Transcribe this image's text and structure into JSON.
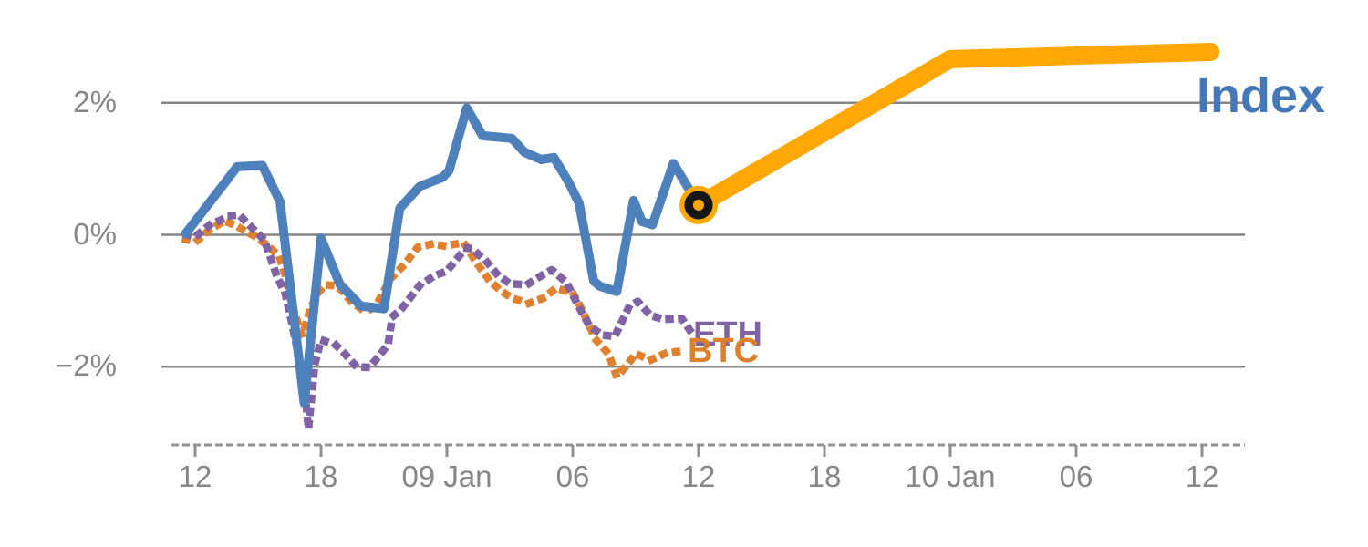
{
  "chart_data": {
    "type": "line",
    "description": "Intraday percent-change chart: Index (solid blue) vs ETH (purple dotted) and BTC (orange dotted), with a thick amber projection of the Index continuing to the right from a ringed marker.",
    "x_axis": {
      "unit": "time, ticks every 6 hours (t = hours after 08 Jan 12:00)",
      "ticks": [
        {
          "hour": 0,
          "label": "12"
        },
        {
          "hour": 6,
          "label": "18"
        },
        {
          "hour": 12,
          "label": "09 Jan"
        },
        {
          "hour": 18,
          "label": "06"
        },
        {
          "hour": 24,
          "label": "12"
        },
        {
          "hour": 30,
          "label": "18"
        },
        {
          "hour": 36,
          "label": "10 Jan"
        },
        {
          "hour": 42,
          "label": "06"
        },
        {
          "hour": 48,
          "label": "12"
        }
      ]
    },
    "y_axis": {
      "unit": "percent change",
      "ticks": [
        {
          "value": 2,
          "label": "2%"
        },
        {
          "value": 0,
          "label": "0%"
        },
        {
          "value": -2,
          "label": "−2%"
        }
      ],
      "implied_range": [
        -3.2,
        3.1
      ]
    },
    "grid": "horizontal gridlines at labeled ticks",
    "legend": "inline series labels",
    "colors": {
      "grid": "#868686",
      "axis": "#909090",
      "index_blue": "#4e80bc",
      "forecast_amber": "#ffa805",
      "eth_purple": "#7f63a5",
      "btc_orange": "#e0812f",
      "marker_ring_black": "#161616"
    },
    "series": [
      {
        "id": "btc",
        "name": "BTC",
        "style": "dotted",
        "color": "#e0812f",
        "width": 8.5,
        "points": [
          [
            -0.45,
            -0.07
          ],
          [
            0.05,
            -0.1
          ],
          [
            0.7,
            0.08
          ],
          [
            1.4,
            0.21
          ],
          [
            2.0,
            0.13
          ],
          [
            2.3,
            0.07
          ],
          [
            2.9,
            -0.03
          ],
          [
            3.4,
            -0.15
          ],
          [
            4.0,
            -0.32
          ],
          [
            4.3,
            -0.62
          ],
          [
            4.6,
            -1.05
          ],
          [
            5.1,
            -1.53
          ],
          [
            5.5,
            -1.12
          ],
          [
            5.8,
            -0.9
          ],
          [
            6.2,
            -0.76
          ],
          [
            6.6,
            -0.77
          ],
          [
            7.0,
            -0.84
          ],
          [
            7.4,
            -1.0
          ],
          [
            7.9,
            -1.12
          ],
          [
            8.3,
            -1.14
          ],
          [
            8.7,
            -1.03
          ],
          [
            9.3,
            -0.67
          ],
          [
            10.0,
            -0.44
          ],
          [
            10.6,
            -0.19
          ],
          [
            11.3,
            -0.14
          ],
          [
            11.9,
            -0.17
          ],
          [
            12.8,
            -0.12
          ],
          [
            13.4,
            -0.42
          ],
          [
            14.0,
            -0.68
          ],
          [
            14.5,
            -0.83
          ],
          [
            15.1,
            -0.96
          ],
          [
            15.9,
            -1.04
          ],
          [
            16.6,
            -0.96
          ],
          [
            17.2,
            -0.81
          ],
          [
            18.0,
            -0.88
          ],
          [
            18.4,
            -1.11
          ],
          [
            19.1,
            -1.59
          ],
          [
            19.7,
            -1.8
          ],
          [
            20.1,
            -2.15
          ],
          [
            20.6,
            -1.97
          ],
          [
            21.0,
            -1.8
          ],
          [
            21.7,
            -1.9
          ],
          [
            22.4,
            -1.8
          ],
          [
            23.2,
            -1.76
          ]
        ]
      },
      {
        "id": "eth",
        "name": "ETH",
        "style": "dotted",
        "color": "#7f63a5",
        "width": 8.5,
        "points": [
          [
            -0.4,
            0.0
          ],
          [
            0.0,
            -0.03
          ],
          [
            0.7,
            0.15
          ],
          [
            1.7,
            0.29
          ],
          [
            2.1,
            0.3
          ],
          [
            2.7,
            0.11
          ],
          [
            3.3,
            -0.08
          ],
          [
            3.9,
            -0.63
          ],
          [
            4.3,
            -0.9
          ],
          [
            4.6,
            -1.32
          ],
          [
            4.9,
            -1.79
          ],
          [
            5.2,
            -2.27
          ],
          [
            5.4,
            -2.94
          ],
          [
            5.7,
            -1.97
          ],
          [
            6.0,
            -1.59
          ],
          [
            6.7,
            -1.67
          ],
          [
            7.1,
            -1.79
          ],
          [
            7.7,
            -2.0
          ],
          [
            8.3,
            -2.01
          ],
          [
            8.7,
            -1.86
          ],
          [
            9.2,
            -1.66
          ],
          [
            9.4,
            -1.24
          ],
          [
            9.8,
            -1.14
          ],
          [
            10.7,
            -0.77
          ],
          [
            11.4,
            -0.62
          ],
          [
            12.0,
            -0.55
          ],
          [
            12.9,
            -0.2
          ],
          [
            13.2,
            -0.21
          ],
          [
            13.9,
            -0.41
          ],
          [
            14.4,
            -0.6
          ],
          [
            15.0,
            -0.74
          ],
          [
            15.8,
            -0.76
          ],
          [
            16.4,
            -0.64
          ],
          [
            17.0,
            -0.53
          ],
          [
            17.7,
            -0.72
          ],
          [
            18.3,
            -1.1
          ],
          [
            18.8,
            -1.38
          ],
          [
            19.4,
            -1.52
          ],
          [
            20.0,
            -1.54
          ],
          [
            20.7,
            -1.08
          ],
          [
            21.1,
            -1.01
          ],
          [
            21.7,
            -1.22
          ],
          [
            22.3,
            -1.28
          ],
          [
            23.2,
            -1.27
          ],
          [
            23.7,
            -1.5
          ]
        ]
      },
      {
        "id": "index",
        "name": "Index",
        "style": "solid",
        "color": "#4e80bc",
        "width": 10,
        "points": [
          [
            -0.45,
            0.02
          ],
          [
            2.0,
            1.03
          ],
          [
            3.2,
            1.05
          ],
          [
            4.05,
            0.5
          ],
          [
            5.2,
            -2.55
          ],
          [
            6.0,
            -0.05
          ],
          [
            6.9,
            -0.75
          ],
          [
            7.9,
            -1.08
          ],
          [
            9.0,
            -1.12
          ],
          [
            9.75,
            0.4
          ],
          [
            10.7,
            0.73
          ],
          [
            11.8,
            0.87
          ],
          [
            12.1,
            0.97
          ],
          [
            12.95,
            1.92
          ],
          [
            13.7,
            1.5
          ],
          [
            15.1,
            1.46
          ],
          [
            15.7,
            1.25
          ],
          [
            16.5,
            1.14
          ],
          [
            17.1,
            1.17
          ],
          [
            17.8,
            0.8
          ],
          [
            18.3,
            0.48
          ],
          [
            19.0,
            -0.7
          ],
          [
            19.3,
            -0.78
          ],
          [
            20.1,
            -0.86
          ],
          [
            20.9,
            0.52
          ],
          [
            21.3,
            0.2
          ],
          [
            21.8,
            0.15
          ],
          [
            22.8,
            1.08
          ],
          [
            24.0,
            0.45
          ]
        ]
      },
      {
        "id": "index-projection",
        "name": "Index projection",
        "style": "thick",
        "color": "#ffa805",
        "width": 20,
        "points": [
          [
            24.0,
            0.45
          ],
          [
            36.0,
            2.66
          ],
          [
            48.4,
            2.77
          ]
        ]
      }
    ],
    "marker": {
      "series": "Index",
      "hour": 24.0,
      "value": 0.45,
      "shape": "orange disc with black ring",
      "disc_color": "#ffa805",
      "disc_radius": 21,
      "ring_color": "#161616",
      "ring_radius": 10.8,
      "ring_width": 9.5
    },
    "series_labels": {
      "index": {
        "text": "Index",
        "color": "#4478b8"
      },
      "eth": {
        "text": "ETH",
        "color": "#8064a2"
      },
      "btc": {
        "text": "BTC",
        "color": "#de812c"
      }
    }
  }
}
